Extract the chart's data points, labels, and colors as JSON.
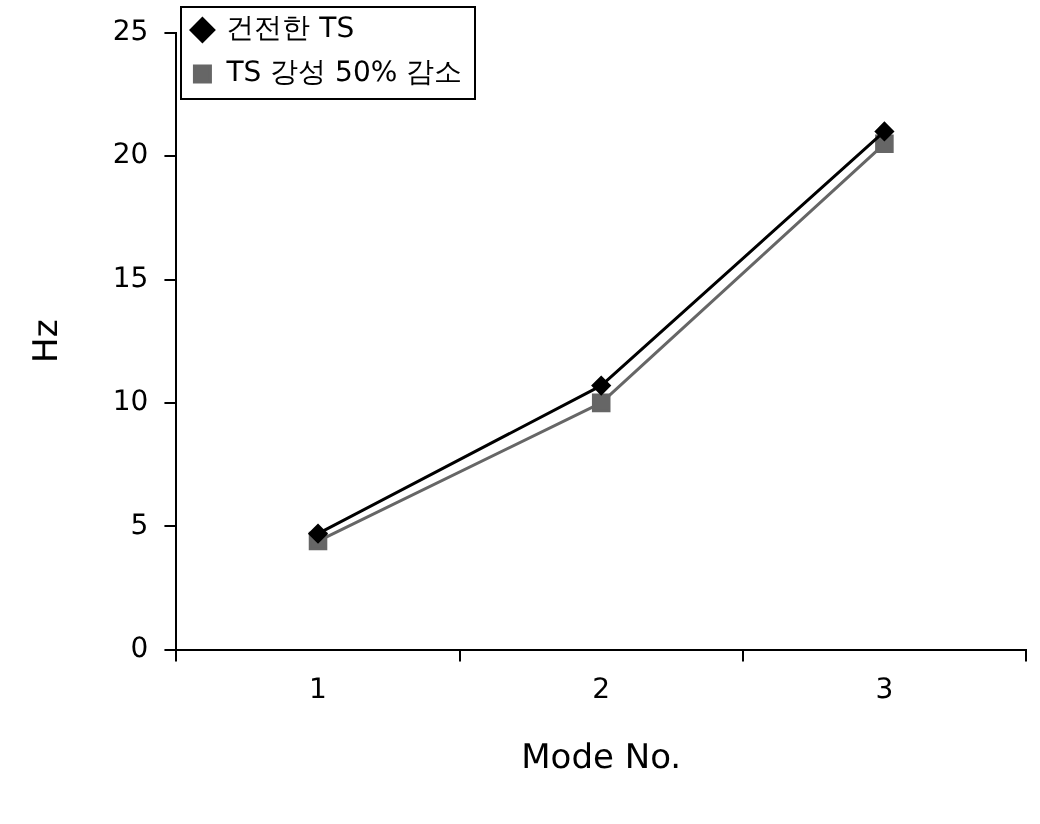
{
  "chart_data": {
    "type": "line",
    "xlabel": "Mode No.",
    "ylabel": "Hz",
    "categories": [
      "1",
      "2",
      "3"
    ],
    "series": [
      {
        "name": "건전한 TS",
        "color": "#000000",
        "marker": "diamond",
        "values": [
          4.7,
          10.7,
          21.0
        ]
      },
      {
        "name": "TS 강성 50% 감소",
        "color": "#666666",
        "marker": "square",
        "values": [
          4.4,
          10.0,
          20.5
        ]
      }
    ],
    "ylim": [
      0,
      25
    ],
    "yticks": [
      0,
      5,
      10,
      15,
      20,
      25
    ],
    "grid": false,
    "legend": "top left"
  }
}
